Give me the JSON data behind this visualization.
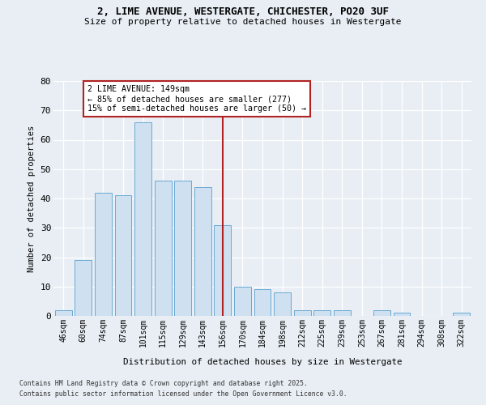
{
  "title1": "2, LIME AVENUE, WESTERGATE, CHICHESTER, PO20 3UF",
  "title2": "Size of property relative to detached houses in Westergate",
  "xlabel": "Distribution of detached houses by size in Westergate",
  "ylabel": "Number of detached properties",
  "categories": [
    "46sqm",
    "60sqm",
    "74sqm",
    "87sqm",
    "101sqm",
    "115sqm",
    "129sqm",
    "143sqm",
    "156sqm",
    "170sqm",
    "184sqm",
    "198sqm",
    "212sqm",
    "225sqm",
    "239sqm",
    "253sqm",
    "267sqm",
    "281sqm",
    "294sqm",
    "308sqm",
    "322sqm"
  ],
  "values": [
    2,
    19,
    42,
    41,
    66,
    46,
    46,
    44,
    31,
    10,
    9,
    8,
    2,
    2,
    2,
    0,
    2,
    1,
    0,
    0,
    1
  ],
  "bar_color": "#cfe0f0",
  "bar_edge_color": "#6aaad4",
  "vline_x_index": 8,
  "vline_color": "#b22222",
  "annotation_text": "2 LIME AVENUE: 149sqm\n← 85% of detached houses are smaller (277)\n15% of semi-detached houses are larger (50) →",
  "annotation_box_color": "#b22222",
  "ylim": [
    0,
    80
  ],
  "yticks": [
    0,
    10,
    20,
    30,
    40,
    50,
    60,
    70,
    80
  ],
  "footer1": "Contains HM Land Registry data © Crown copyright and database right 2025.",
  "footer2": "Contains public sector information licensed under the Open Government Licence v3.0.",
  "bg_color": "#e8eef4",
  "plot_bg_color": "#e8eef4"
}
